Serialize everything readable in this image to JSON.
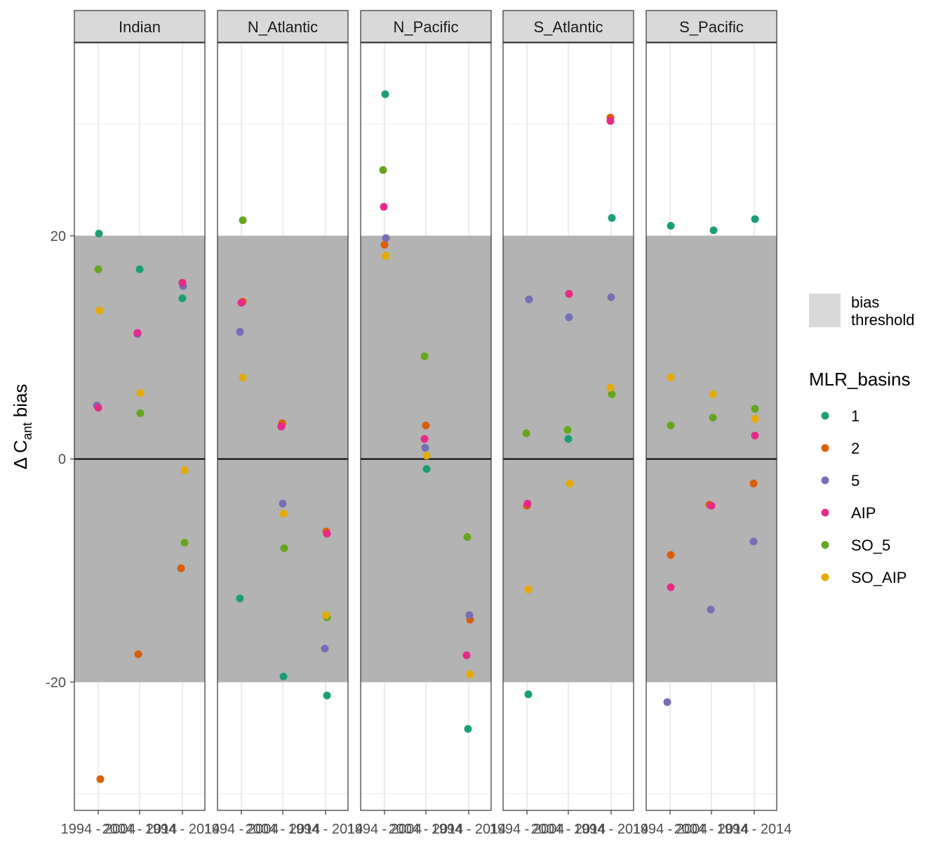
{
  "chart_data": {
    "type": "scatter",
    "facets": [
      "Indian",
      "N_Atlantic",
      "N_Pacific",
      "S_Atlantic",
      "S_Pacific"
    ],
    "ylabel": {
      "main": "Δ C",
      "sub": "ant",
      "tail": " bias"
    },
    "x_ticks": [
      "1994 - 2004",
      "2004 - 2014",
      "1994 - 2014"
    ],
    "y_ticks": [
      -20,
      0,
      20
    ],
    "ylim": [
      -31.5,
      37.3
    ],
    "bias_threshold": [
      -20,
      20
    ],
    "grid": true,
    "legend_position": "right",
    "band_legend": {
      "label_line1": "bias",
      "label_line2": "threshold",
      "color": "#d9d9d9"
    },
    "color_legend": {
      "title": "MLR_basins",
      "entries": [
        {
          "name": "1",
          "color": "#1b9e77"
        },
        {
          "name": "2",
          "color": "#d95f02"
        },
        {
          "name": "5",
          "color": "#7570b3"
        },
        {
          "name": "AIP",
          "color": "#e7298a"
        },
        {
          "name": "SO_5",
          "color": "#66a61e"
        },
        {
          "name": "SO_AIP",
          "color": "#e6ab02"
        }
      ]
    },
    "series": [
      {
        "name": "1",
        "values": {
          "Indian": [
            20.2,
            17.0,
            14.4
          ],
          "N_Atlantic": [
            -12.5,
            -19.5,
            -21.2
          ],
          "N_Pacific": [
            32.7,
            -0.9,
            -24.2
          ],
          "S_Atlantic": [
            -21.1,
            1.8,
            21.6
          ],
          "S_Pacific": [
            20.9,
            20.5,
            21.5
          ]
        }
      },
      {
        "name": "2",
        "values": {
          "Indian": [
            -28.7,
            -17.5,
            -9.8
          ],
          "N_Atlantic": [
            14.1,
            3.2,
            -6.5
          ],
          "N_Pacific": [
            19.2,
            3.0,
            -14.4
          ],
          "S_Atlantic": [
            -4.2,
            14.8,
            30.6
          ],
          "S_Pacific": [
            -8.6,
            -4.1,
            -2.2
          ]
        }
      },
      {
        "name": "5",
        "values": {
          "Indian": [
            4.8,
            11.2,
            15.5
          ],
          "N_Atlantic": [
            11.4,
            -4.0,
            -17.0
          ],
          "N_Pacific": [
            19.8,
            1.0,
            -14.0
          ],
          "S_Atlantic": [
            14.3,
            12.7,
            14.5
          ],
          "S_Pacific": [
            -21.8,
            -13.5,
            -7.4
          ]
        }
      },
      {
        "name": "AIP",
        "values": {
          "Indian": [
            4.6,
            11.3,
            15.8
          ],
          "N_Atlantic": [
            14.0,
            2.9,
            -6.7
          ],
          "N_Pacific": [
            22.6,
            1.8,
            -17.6
          ],
          "S_Atlantic": [
            -4.0,
            14.8,
            30.3
          ],
          "S_Pacific": [
            -11.5,
            -4.2,
            2.1
          ]
        }
      },
      {
        "name": "SO_5",
        "values": {
          "Indian": [
            17.0,
            4.1,
            -7.5
          ],
          "N_Atlantic": [
            21.4,
            -8.0,
            -14.2
          ],
          "N_Pacific": [
            25.9,
            9.2,
            -7.0
          ],
          "S_Atlantic": [
            2.3,
            2.6,
            5.8
          ],
          "S_Pacific": [
            3.0,
            3.7,
            4.5
          ]
        }
      },
      {
        "name": "SO_AIP",
        "values": {
          "Indian": [
            13.3,
            5.9,
            -1.0
          ],
          "N_Atlantic": [
            7.3,
            -4.9,
            -14.0
          ],
          "N_Pacific": [
            18.2,
            0.3,
            -19.3
          ],
          "S_Atlantic": [
            -11.7,
            -2.2,
            6.4
          ],
          "S_Pacific": [
            7.3,
            5.8,
            3.6
          ]
        }
      }
    ]
  }
}
